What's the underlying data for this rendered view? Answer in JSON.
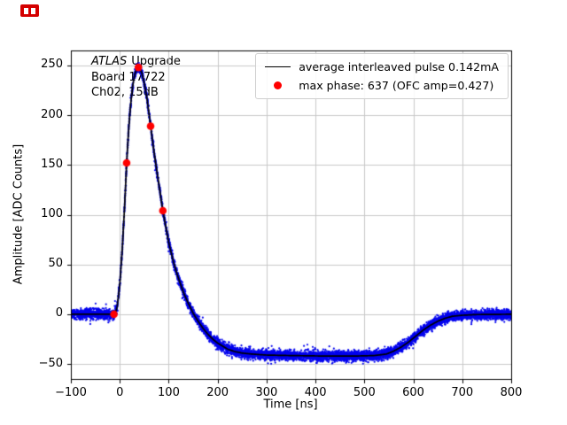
{
  "window": {
    "badge_color": "#d40000"
  },
  "chart_data": {
    "type": "line",
    "title": "",
    "xlabel": "Time [ns]",
    "ylabel": "Amplitude [ADC Counts]",
    "xlim": [
      -100,
      800
    ],
    "ylim": [
      -65,
      265
    ],
    "xticks": [
      -100,
      0,
      100,
      200,
      300,
      400,
      500,
      600,
      700,
      800
    ],
    "yticks": [
      -50,
      0,
      50,
      100,
      150,
      200,
      250
    ],
    "grid": true,
    "legend_position": "upper right",
    "colors": {
      "samples_scatter": "#0000ee",
      "average_line": "#000000",
      "max_phase_marker": "#ff0000",
      "grid": "#c8c8c8",
      "axes": "#000000"
    },
    "annotation": {
      "line1_italic": "ATLAS",
      "line1_rest": "Upgrade",
      "line2": "Board 17722",
      "line3": "Ch02, 15dB"
    },
    "legend": {
      "entries": [
        {
          "marker": "line",
          "color": "#000000",
          "label": "average interleaved pulse 0.142mA"
        },
        {
          "marker": "dot",
          "color": "#ff0000",
          "label": "max phase: 637 (OFC amp=0.427)"
        }
      ]
    },
    "series": [
      {
        "name": "average interleaved pulse",
        "type": "line",
        "color": "#000000",
        "points": [
          [
            -100,
            0
          ],
          [
            -30,
            0
          ],
          [
            -12,
            0
          ],
          [
            -6,
            5
          ],
          [
            0,
            30
          ],
          [
            5,
            65
          ],
          [
            10,
            110
          ],
          [
            14,
            152
          ],
          [
            18,
            185
          ],
          [
            22,
            210
          ],
          [
            26,
            228
          ],
          [
            30,
            240
          ],
          [
            34,
            246
          ],
          [
            38,
            248
          ],
          [
            42,
            246
          ],
          [
            46,
            241
          ],
          [
            50,
            232
          ],
          [
            55,
            219
          ],
          [
            63,
            189
          ],
          [
            70,
            163
          ],
          [
            80,
            130
          ],
          [
            88,
            104
          ],
          [
            100,
            72
          ],
          [
            110,
            52
          ],
          [
            120,
            36
          ],
          [
            130,
            22
          ],
          [
            140,
            11
          ],
          [
            150,
            1
          ],
          [
            160,
            -7
          ],
          [
            170,
            -14
          ],
          [
            180,
            -20
          ],
          [
            190,
            -25
          ],
          [
            200,
            -29
          ],
          [
            210,
            -32
          ],
          [
            220,
            -35
          ],
          [
            235,
            -37.5
          ],
          [
            250,
            -39
          ],
          [
            270,
            -40
          ],
          [
            300,
            -41
          ],
          [
            350,
            -41.5
          ],
          [
            420,
            -42
          ],
          [
            480,
            -42
          ],
          [
            520,
            -41.5
          ],
          [
            545,
            -40
          ],
          [
            560,
            -37
          ],
          [
            575,
            -33
          ],
          [
            590,
            -28
          ],
          [
            605,
            -22
          ],
          [
            620,
            -16
          ],
          [
            635,
            -11
          ],
          [
            650,
            -7
          ],
          [
            665,
            -4
          ],
          [
            680,
            -2
          ],
          [
            700,
            -1
          ],
          [
            730,
            -0.3
          ],
          [
            800,
            0
          ]
        ]
      },
      {
        "name": "interleaved samples",
        "type": "scatter-band",
        "color": "#0000ee",
        "noise_sigma": 2.3,
        "n_points": 9000
      },
      {
        "name": "max phase samples",
        "type": "markers",
        "color": "#ff0000",
        "points": [
          [
            -12,
            0
          ],
          [
            14,
            152
          ],
          [
            38,
            248
          ],
          [
            63,
            189
          ],
          [
            88,
            104
          ]
        ]
      }
    ]
  }
}
